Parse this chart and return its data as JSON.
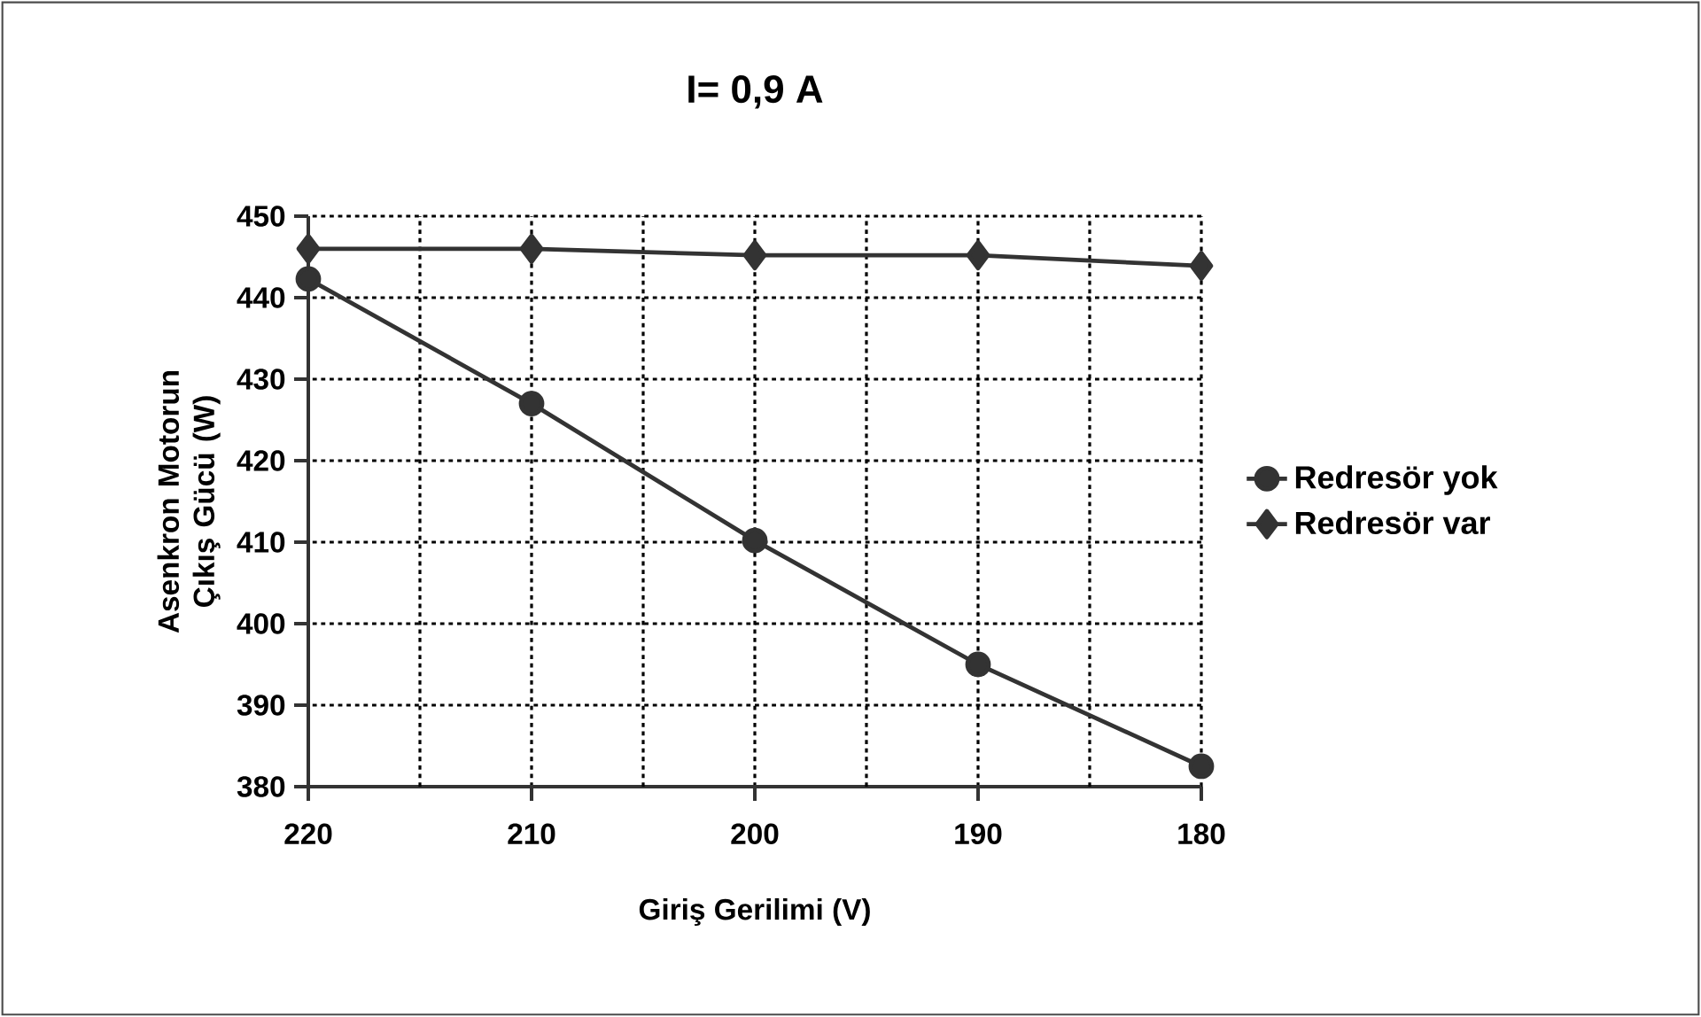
{
  "chart_data": {
    "type": "line",
    "title": "I= 0,9 A",
    "xlabel": "Giriş Gerilimi (V)",
    "ylabel": "Asenkron Motorun Çıkış Gücü (W)",
    "x": [
      220,
      210,
      200,
      190,
      180
    ],
    "xlim": [
      220,
      180
    ],
    "xticks": [
      220,
      {
        "value": 215,
        "label": null
      },
      210,
      {
        "value": 205,
        "label": null
      },
      200,
      {
        "value": 195,
        "label": null
      },
      190,
      {
        "value": 185,
        "label": null
      },
      180
    ],
    "ylim": [
      380,
      450
    ],
    "yticks": [
      380,
      390,
      400,
      410,
      420,
      430,
      440,
      450
    ],
    "series": [
      {
        "name": "Redresör yok",
        "color": "#333333",
        "marker": "circle",
        "values": [
          442.3,
          427,
          410.2,
          395,
          382.5
        ]
      },
      {
        "name": "Redresör var",
        "color": "#333333",
        "marker": "diamond",
        "values": [
          446,
          446,
          445.2,
          445.2,
          443.9
        ]
      }
    ],
    "grid": true,
    "legend": "right",
    "line_style": "solid"
  }
}
